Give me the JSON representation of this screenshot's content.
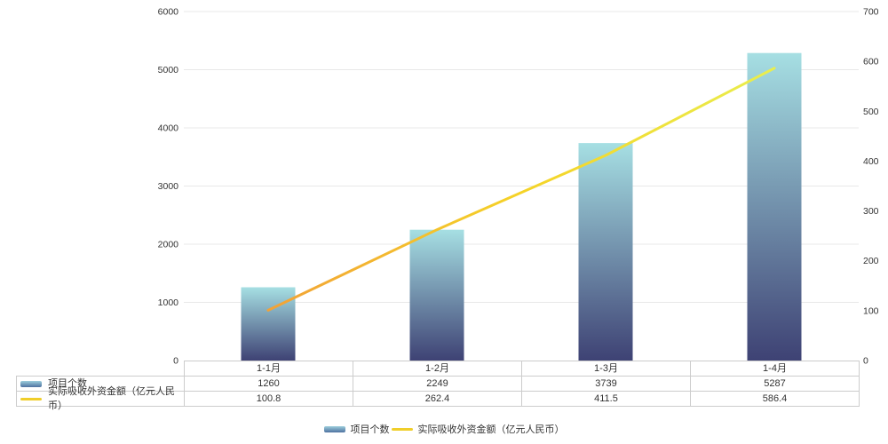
{
  "chart_data": {
    "type": "bar",
    "categories": [
      "1-1月",
      "1-2月",
      "1-3月",
      "1-4月"
    ],
    "series": [
      {
        "name": "项目个数",
        "type": "bar",
        "axis": "left",
        "values": [
          1260,
          2249,
          3739,
          5287
        ]
      },
      {
        "name": "实际吸收外资金额（亿元人民币）",
        "type": "line",
        "axis": "right",
        "values": [
          100.8,
          262.4,
          411.5,
          586.4
        ]
      }
    ],
    "left_axis": {
      "min": 0,
      "max": 6000,
      "step": 1000,
      "tick_labels": [
        "0",
        "1000",
        "2000",
        "3000",
        "4000",
        "5000",
        "6000"
      ]
    },
    "right_axis": {
      "min": 0,
      "max": 700,
      "step": 100,
      "tick_labels": [
        "0",
        "100",
        "200",
        "300",
        "400",
        "500",
        "600",
        "700"
      ]
    },
    "grid": true,
    "legend_position": "bottom",
    "colors": {
      "bar_gradient_top": "#A6DFE3",
      "bar_gradient_bottom": "#3E4274",
      "line_gradient": [
        "#F2A237",
        "#F5D327",
        "#E9EE4E"
      ],
      "legend_bar_top": "#9CCEDC",
      "legend_bar_bottom": "#4E71A0",
      "legend_line": "#F0CE2A",
      "gridline": "#E8E8E8",
      "table_border": "#CCCCCC",
      "text": "#333333"
    }
  },
  "table": {
    "category_row": [
      "1-1月",
      "1-2月",
      "1-3月",
      "1-4月"
    ],
    "rows": [
      {
        "label": "项目个数",
        "icon": "bar-swatch",
        "values": [
          "1260",
          "2249",
          "3739",
          "5287"
        ]
      },
      {
        "label": "实际吸收外资金额（亿元人民币）",
        "icon": "line-swatch",
        "values": [
          "100.8",
          "262.4",
          "411.5",
          "586.4"
        ]
      }
    ]
  },
  "legend": {
    "items": [
      {
        "label": "项目个数",
        "swatch": "bar"
      },
      {
        "label": "实际吸收外资金额（亿元人民币）",
        "swatch": "line"
      }
    ]
  }
}
